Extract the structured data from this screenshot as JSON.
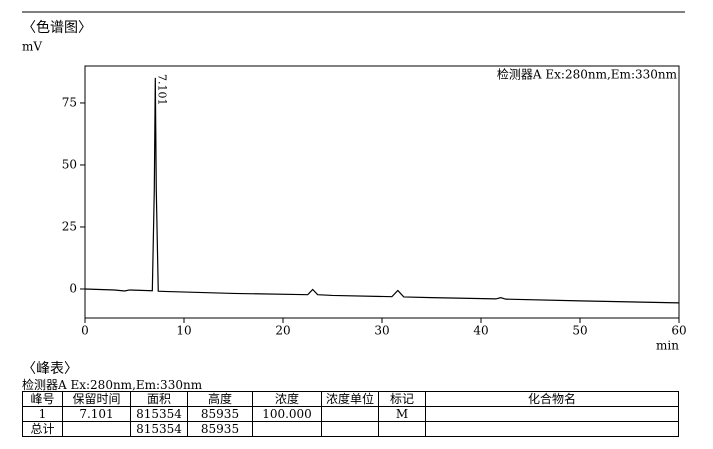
{
  "header": {
    "title": "〈色谱图〉"
  },
  "chart_data": {
    "type": "line",
    "ylabel": "mV",
    "xlabel": "min",
    "x": [
      0,
      3,
      4,
      4.5,
      6.8,
      7.0,
      7.101,
      7.2,
      7.4,
      8,
      15,
      22.5,
      23,
      23.5,
      25,
      31,
      31.6,
      32.2,
      35,
      41.5,
      42,
      42.5,
      50,
      60
    ],
    "series": [
      {
        "name": "检测器A Ex:280nm,Em:330nm",
        "color": "#000000",
        "values": [
          0,
          -0.4,
          -0.8,
          -0.4,
          -0.7,
          40,
          85.1,
          40,
          -0.9,
          -1.0,
          -1.8,
          -2.3,
          -0.2,
          -2.3,
          -2.6,
          -3.1,
          -0.6,
          -3.2,
          -3.5,
          -4.0,
          -3.5,
          -4.1,
          -4.8,
          -5.6
        ]
      }
    ],
    "peak_labels": [
      {
        "x": 7.101,
        "label": "7.101"
      }
    ],
    "xlim": [
      0,
      60
    ],
    "xticks": [
      0,
      10,
      20,
      30,
      40,
      50,
      60
    ],
    "ylim": [
      -11.7,
      89.9
    ],
    "yticks": [
      0,
      25,
      50,
      75
    ]
  },
  "peak_table": {
    "title": "〈峰表〉",
    "detector": "检测器A Ex:280nm,Em:330nm",
    "columns": [
      "峰号",
      "保留时间",
      "面积",
      "高度",
      "浓度",
      "浓度单位",
      "标记",
      "化合物名"
    ],
    "rows": [
      [
        "1",
        "7.101",
        "815354",
        "85935",
        "100.000",
        null,
        "M",
        null
      ],
      [
        "总计",
        null,
        "815354",
        "85935",
        null,
        null,
        null,
        null
      ]
    ]
  }
}
